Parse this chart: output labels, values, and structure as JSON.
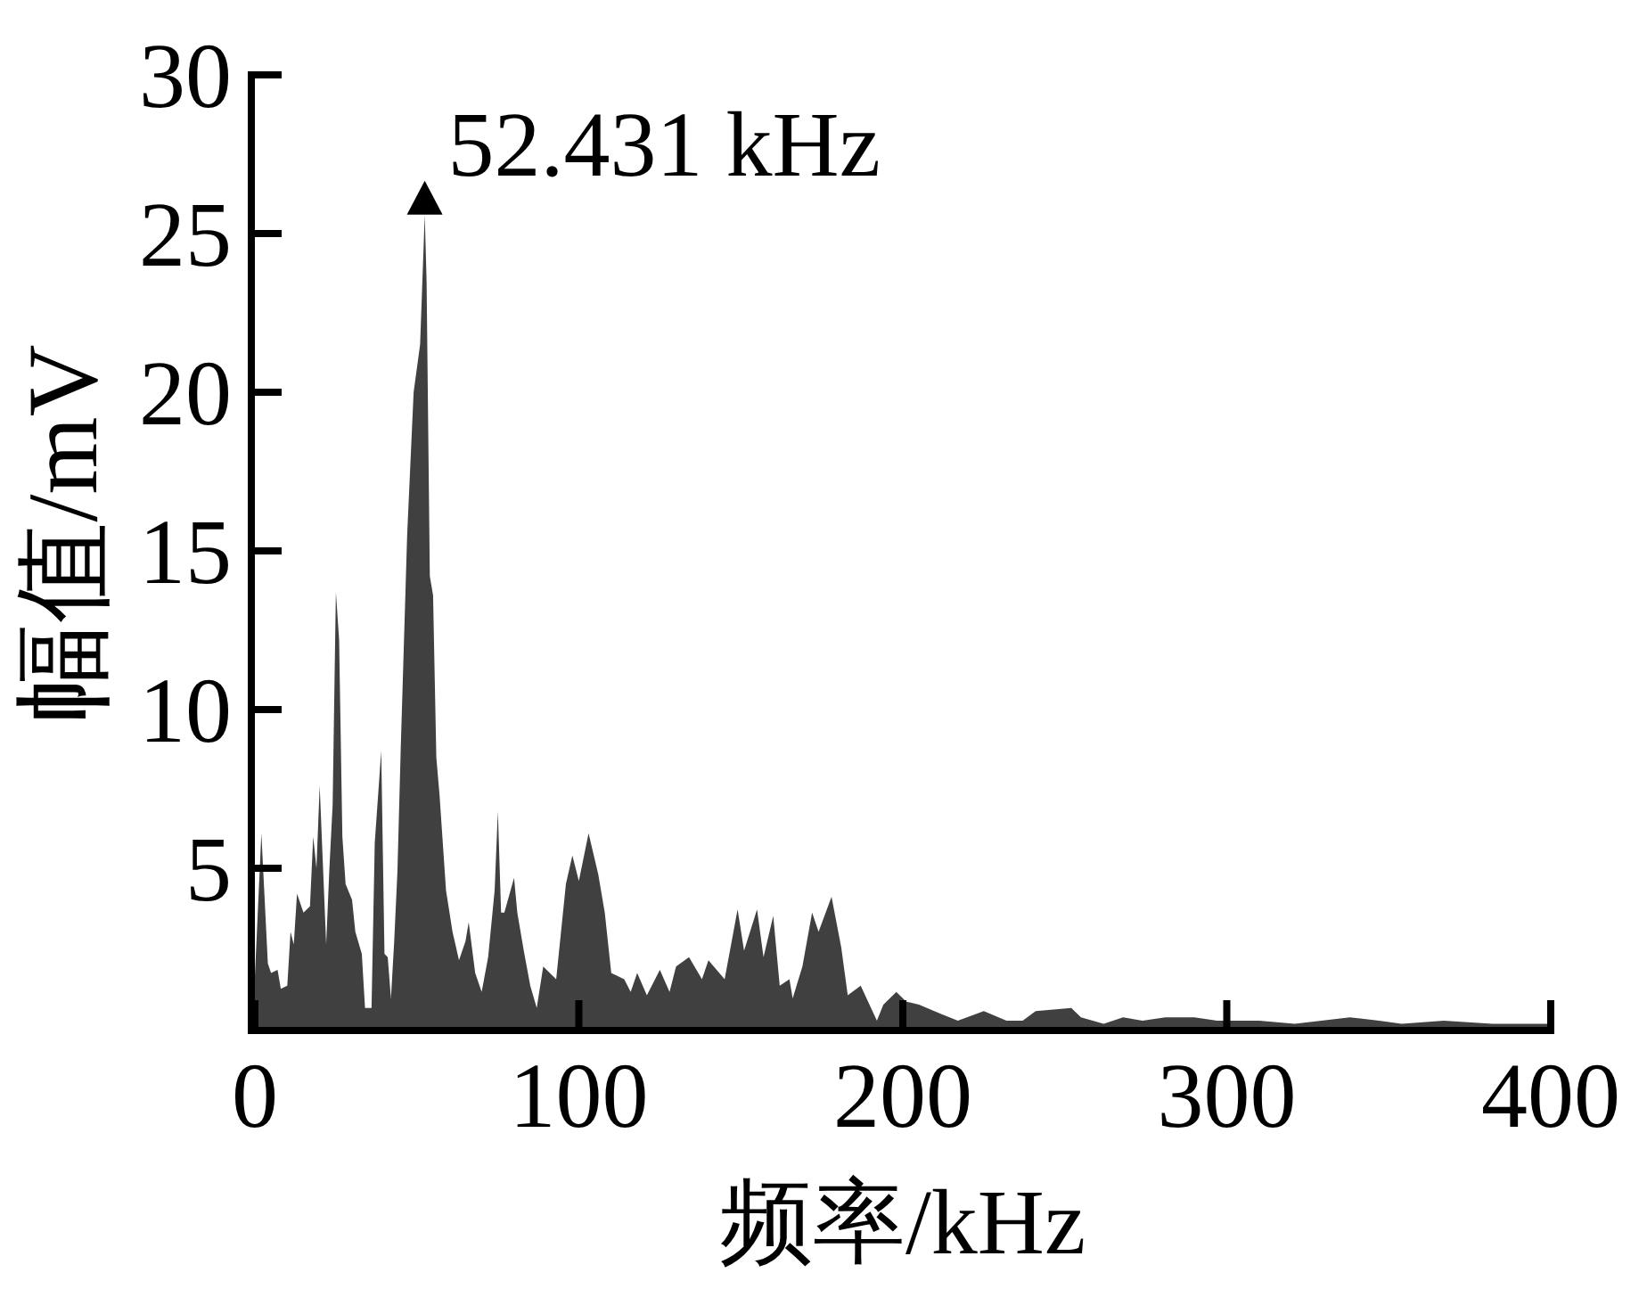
{
  "chart_data": {
    "type": "area",
    "xlabel": "频率/kHz",
    "ylabel": "幅值/mV",
    "color": "#404040",
    "x": [
      0,
      2,
      4,
      5,
      7,
      8,
      10,
      11,
      12,
      13,
      15,
      17,
      18,
      19,
      20,
      22,
      23,
      24,
      25,
      26,
      27,
      28,
      30,
      31,
      33,
      34,
      36,
      37,
      39,
      40,
      41,
      42,
      43,
      44,
      45,
      47,
      49,
      51,
      52.431,
      53,
      54,
      55,
      56,
      57,
      59,
      61,
      63,
      65,
      66,
      68,
      70,
      72,
      74,
      75,
      76,
      77,
      80,
      81,
      83,
      85,
      87,
      89,
      93,
      96,
      98,
      100,
      103,
      106,
      108,
      110,
      114,
      116,
      118,
      121,
      125,
      128,
      130,
      134,
      138,
      140,
      145,
      149,
      151,
      155,
      157,
      160,
      162,
      165,
      166,
      169,
      172,
      174,
      178,
      181,
      183,
      187,
      192,
      194,
      198,
      201,
      205,
      212,
      217,
      225,
      232,
      237,
      241,
      252,
      255,
      262,
      268,
      274,
      281,
      290,
      297,
      310,
      321,
      338,
      347,
      354,
      367,
      382,
      400
    ],
    "values": [
      1.6,
      6.1,
      2.0,
      1.7,
      1.8,
      1.2,
      1.3,
      3.0,
      2.6,
      4.2,
      3.6,
      3.8,
      6.0,
      5.0,
      7.6,
      2.6,
      5.0,
      7.0,
      13.7,
      12.2,
      6.0,
      4.5,
      4.0,
      3.0,
      2.3,
      0.6,
      0.6,
      5.8,
      8.7,
      2.3,
      2.2,
      0.9,
      2.7,
      4.9,
      8.7,
      15.5,
      20.0,
      21.5,
      25.6,
      23.5,
      14.2,
      13.6,
      8.5,
      7.3,
      4.3,
      3.0,
      2.1,
      2.7,
      3.3,
      1.7,
      1.1,
      2.2,
      4.3,
      6.8,
      3.6,
      3.6,
      4.7,
      3.6,
      2.4,
      1.3,
      0.6,
      1.9,
      1.5,
      4.5,
      5.4,
      4.6,
      6.1,
      4.8,
      3.6,
      1.7,
      1.5,
      1.1,
      1.7,
      1.0,
      1.8,
      1.1,
      1.9,
      2.2,
      1.5,
      2.1,
      1.5,
      3.7,
      2.4,
      3.7,
      2.2,
      3.5,
      1.3,
      1.5,
      0.9,
      1.9,
      3.6,
      3.0,
      4.1,
      2.5,
      1.0,
      1.3,
      0.2,
      0.7,
      1.1,
      0.8,
      0.7,
      0.4,
      0.2,
      0.5,
      0.2,
      0.2,
      0.5,
      0.6,
      0.3,
      0.1,
      0.3,
      0.2,
      0.3,
      0.3,
      0.2,
      0.2,
      0.1,
      0.3,
      0.2,
      0.1,
      0.2,
      0.1,
      0.1
    ],
    "xlim": [
      0,
      400
    ],
    "xticks": [
      0,
      100,
      200,
      300,
      400
    ],
    "ylim": [
      0,
      30
    ],
    "yticks": [
      5,
      10,
      15,
      20,
      25,
      30
    ],
    "annotations": [
      {
        "text": "52.431 kHz",
        "x": 52.431,
        "y": 25.6
      }
    ]
  }
}
